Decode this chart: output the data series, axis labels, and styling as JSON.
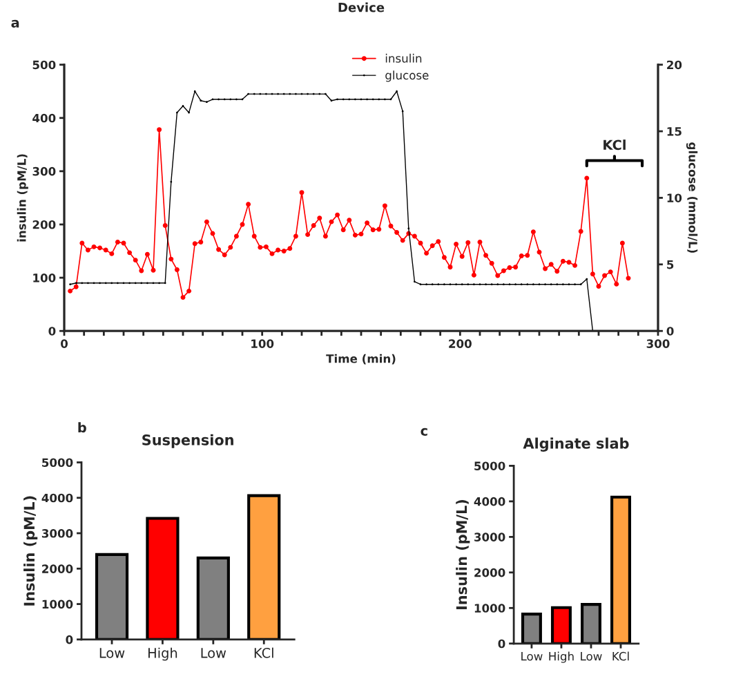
{
  "chart_data": [
    {
      "type": "line",
      "title": "Device",
      "xlabel": "Time (min)",
      "ylabel": "insulin (pM/L)",
      "y2label": "glucose (mmol/L)",
      "annotations": [
        "a",
        "KCl"
      ],
      "xlim": [
        0,
        300
      ],
      "xticks": [
        0,
        {
          "value": 10,
          "label": null
        },
        {
          "value": 20,
          "label": null
        },
        {
          "value": 30,
          "label": null
        },
        {
          "value": 40,
          "label": null
        },
        {
          "value": 50,
          "label": null
        },
        {
          "value": 60,
          "label": null
        },
        {
          "value": 70,
          "label": null
        },
        {
          "value": 80,
          "label": null
        },
        {
          "value": 90,
          "label": null
        },
        100,
        {
          "value": 110,
          "label": null
        },
        {
          "value": 120,
          "label": null
        },
        {
          "value": 130,
          "label": null
        },
        {
          "value": 140,
          "label": null
        },
        {
          "value": 150,
          "label": null
        },
        {
          "value": 160,
          "label": null
        },
        {
          "value": 170,
          "label": null
        },
        {
          "value": 180,
          "label": null
        },
        {
          "value": 190,
          "label": null
        },
        200,
        {
          "value": 210,
          "label": null
        },
        {
          "value": 220,
          "label": null
        },
        {
          "value": 230,
          "label": null
        },
        {
          "value": 240,
          "label": null
        },
        {
          "value": 250,
          "label": null
        },
        {
          "value": 260,
          "label": null
        },
        {
          "value": 270,
          "label": null
        },
        {
          "value": 280,
          "label": null
        },
        {
          "value": 290,
          "label": null
        },
        300
      ],
      "ylim": [
        0,
        500
      ],
      "yticks": [
        0,
        100,
        200,
        300,
        400,
        500
      ],
      "y2lim": [
        0,
        20
      ],
      "y2ticks": [
        0,
        5,
        10,
        15,
        20
      ],
      "legend": "top",
      "grid": false,
      "line_style": "solid",
      "series": [
        {
          "name": "insulin",
          "color": "#ff0000",
          "marker": "circle",
          "x": [
            3,
            6,
            9,
            12,
            15,
            18,
            21,
            24,
            27,
            30,
            33,
            36,
            39,
            42,
            45,
            48,
            51,
            54,
            57,
            60,
            63,
            66,
            69,
            72,
            75,
            78,
            81,
            84,
            87,
            90,
            93,
            96,
            99,
            102,
            105,
            108,
            111,
            114,
            117,
            120,
            123,
            126,
            129,
            132,
            135,
            138,
            141,
            144,
            147,
            150,
            153,
            156,
            159,
            162,
            165,
            168,
            171,
            174,
            177,
            180,
            183,
            186,
            189,
            192,
            195,
            198,
            201,
            204,
            207,
            210,
            213,
            216,
            219,
            222,
            225,
            228,
            231,
            234,
            237,
            240,
            243,
            246,
            249,
            252,
            255,
            258,
            261,
            264,
            267,
            270,
            273,
            276,
            279,
            282,
            285
          ],
          "values": [
            75,
            83,
            165,
            152,
            158,
            156,
            152,
            145,
            167,
            165,
            147,
            133,
            113,
            144,
            114,
            378,
            198,
            135,
            115,
            63,
            75,
            164,
            167,
            205,
            183,
            153,
            143,
            157,
            178,
            200,
            238,
            178,
            157,
            158,
            145,
            152,
            150,
            155,
            178,
            260,
            181,
            198,
            212,
            178,
            205,
            218,
            190,
            208,
            180,
            182,
            203,
            190,
            191,
            235,
            197,
            185,
            170,
            183,
            178,
            165,
            146,
            160,
            168,
            138,
            120,
            163,
            140,
            166,
            105,
            167,
            142,
            127,
            104,
            113,
            119,
            120,
            141,
            142,
            186,
            148,
            117,
            125,
            112,
            131,
            129,
            123,
            187,
            287,
            107,
            84,
            104,
            111,
            88,
            165,
            99
          ]
        },
        {
          "name": "glucose",
          "color": "#000000",
          "marker": "circle",
          "axis": "y2",
          "x": [
            3,
            6,
            9,
            12,
            15,
            18,
            21,
            24,
            27,
            30,
            33,
            36,
            39,
            42,
            45,
            48,
            51,
            54,
            57,
            60,
            63,
            66,
            69,
            72,
            75,
            78,
            81,
            84,
            87,
            90,
            93,
            96,
            99,
            102,
            105,
            108,
            111,
            114,
            117,
            120,
            123,
            126,
            129,
            132,
            135,
            138,
            141,
            144,
            147,
            150,
            153,
            156,
            159,
            162,
            165,
            168,
            171,
            174,
            177,
            180,
            183,
            186,
            189,
            192,
            195,
            198,
            201,
            204,
            207,
            210,
            213,
            216,
            219,
            222,
            225,
            228,
            231,
            234,
            237,
            240,
            243,
            246,
            249,
            252,
            255,
            258,
            261,
            264,
            267
          ],
          "values": [
            3.5,
            3.6,
            3.6,
            3.6,
            3.6,
            3.6,
            3.6,
            3.6,
            3.6,
            3.6,
            3.6,
            3.6,
            3.6,
            3.6,
            3.6,
            3.6,
            3.6,
            11.2,
            16.4,
            16.9,
            16.4,
            18.0,
            17.3,
            17.2,
            17.4,
            17.4,
            17.4,
            17.4,
            17.4,
            17.4,
            17.8,
            17.8,
            17.8,
            17.8,
            17.8,
            17.8,
            17.8,
            17.8,
            17.8,
            17.8,
            17.8,
            17.8,
            17.8,
            17.8,
            17.3,
            17.4,
            17.4,
            17.4,
            17.4,
            17.4,
            17.4,
            17.4,
            17.4,
            17.4,
            17.4,
            18.0,
            16.5,
            7.7,
            3.7,
            3.5,
            3.5,
            3.5,
            3.5,
            3.5,
            3.5,
            3.5,
            3.5,
            3.5,
            3.5,
            3.5,
            3.5,
            3.5,
            3.5,
            3.5,
            3.5,
            3.5,
            3.5,
            3.5,
            3.5,
            3.5,
            3.5,
            3.5,
            3.5,
            3.5,
            3.5,
            3.5,
            3.5,
            3.9,
            0
          ]
        }
      ]
    },
    {
      "type": "bar",
      "title": "Suspension",
      "ylabel": "Insulin (pM/L)",
      "annotations": [
        "b"
      ],
      "categories": [
        "Low",
        "High",
        "Low",
        "KCl"
      ],
      "values": [
        2400,
        3420,
        2300,
        4060
      ],
      "colors": [
        "#808080",
        "#ff0000",
        "#808080",
        "#ffa040"
      ],
      "ylim": [
        0,
        5000
      ],
      "yticks": [
        0,
        1000,
        2000,
        3000,
        4000,
        5000
      ],
      "grid": false
    },
    {
      "type": "bar",
      "title": "Alginate slab",
      "ylabel": "Insulin (pM/L)",
      "annotations": [
        "c"
      ],
      "categories": [
        "Low",
        "High",
        "Low",
        "KCl"
      ],
      "values": [
        830,
        1010,
        1100,
        4120
      ],
      "colors": [
        "#808080",
        "#ff0000",
        "#808080",
        "#ffa040"
      ],
      "ylim": [
        0,
        5000
      ],
      "yticks": [
        0,
        1000,
        2000,
        3000,
        4000,
        5000
      ],
      "grid": false
    }
  ]
}
